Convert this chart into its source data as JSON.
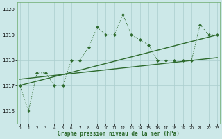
{
  "title": "Graphe pression niveau de la mer (hPa)",
  "x_values": [
    0,
    1,
    2,
    3,
    4,
    5,
    6,
    7,
    8,
    9,
    10,
    11,
    12,
    13,
    14,
    15,
    16,
    17,
    18,
    19,
    20,
    21,
    22,
    23
  ],
  "y_main": [
    1017.0,
    1016.0,
    1017.5,
    1017.5,
    1017.0,
    1017.0,
    1018.0,
    1018.0,
    1018.5,
    1019.3,
    1019.0,
    1019.0,
    1019.8,
    1019.0,
    1018.8,
    1018.6,
    1018.0,
    1018.0,
    1018.0,
    1018.0,
    1018.0,
    1019.4,
    1019.0,
    1019.0
  ],
  "line_color": "#2d6a2d",
  "bg_color": "#cce8e8",
  "grid_color": "#aacece",
  "ylim": [
    1015.5,
    1020.3
  ],
  "xlim": [
    -0.3,
    23.3
  ],
  "yticks": [
    1016,
    1017,
    1018,
    1019,
    1020
  ],
  "xticks": [
    0,
    1,
    2,
    3,
    4,
    5,
    6,
    7,
    8,
    9,
    10,
    11,
    12,
    13,
    14,
    15,
    16,
    17,
    18,
    19,
    20,
    21,
    22,
    23
  ],
  "trend1_x": [
    0,
    23
  ],
  "trend1_y": [
    1017.0,
    1019.0
  ],
  "trend2_x": [
    0,
    23
  ],
  "trend2_y": [
    1017.25,
    1018.1
  ]
}
